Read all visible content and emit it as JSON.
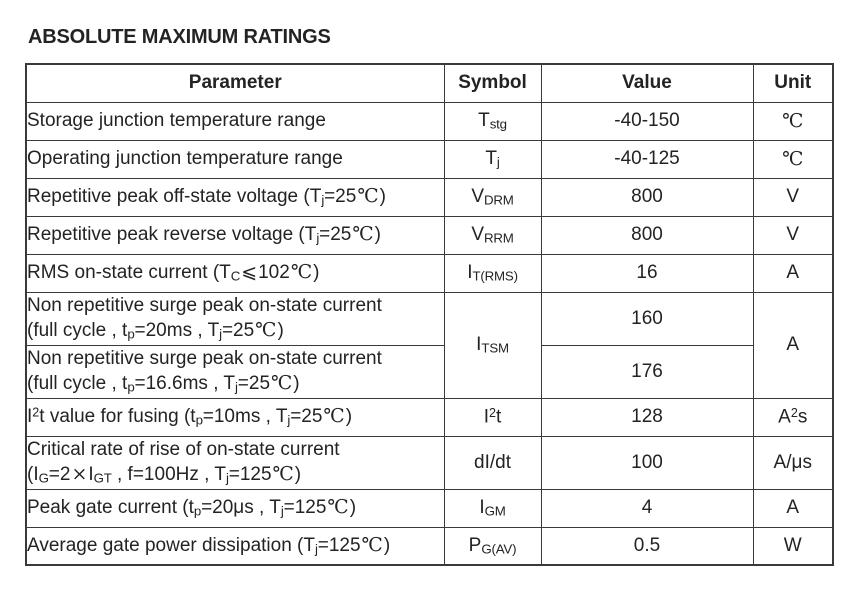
{
  "title": "ABSOLUTE MAXIMUM RATINGS",
  "colors": {
    "text": "#232323",
    "border": "#3a3a3a",
    "background": "#ffffff"
  },
  "table": {
    "headers": {
      "parameter": "Parameter",
      "symbol": "Symbol",
      "value": "Value",
      "unit": "Unit"
    },
    "rows": [
      {
        "param": [
          {
            "t": "Storage junction temperature range"
          }
        ],
        "symbol": [
          {
            "t": "T"
          },
          {
            "sub": "stg"
          }
        ],
        "value": "-40-150",
        "unit": [
          {
            "c": "℃"
          }
        ]
      },
      {
        "param": [
          {
            "t": "Operating junction temperature range"
          }
        ],
        "symbol": [
          {
            "t": "T"
          },
          {
            "sub": "j"
          }
        ],
        "value": "-40-125",
        "unit": [
          {
            "c": "℃"
          }
        ]
      },
      {
        "param": [
          {
            "t": "Repetitive peak off-state voltage (T"
          },
          {
            "sub": "j"
          },
          {
            "t": "=25"
          },
          {
            "c": "℃"
          },
          {
            "t": ")"
          }
        ],
        "symbol": [
          {
            "t": "V"
          },
          {
            "sub": "DRM"
          }
        ],
        "value": "800",
        "unit": [
          {
            "t": "V"
          }
        ]
      },
      {
        "param": [
          {
            "t": "Repetitive peak reverse voltage (T"
          },
          {
            "sub": "j"
          },
          {
            "t": "=25"
          },
          {
            "c": "℃"
          },
          {
            "t": ")"
          }
        ],
        "symbol": [
          {
            "t": "V"
          },
          {
            "sub": "RRM"
          }
        ],
        "value": "800",
        "unit": [
          {
            "t": "V"
          }
        ]
      },
      {
        "param": [
          {
            "t": "RMS on-state current (T"
          },
          {
            "sub": "C"
          },
          {
            "c": "⩽"
          },
          {
            "t": "102"
          },
          {
            "c": "℃"
          },
          {
            "t": ")"
          }
        ],
        "symbol": [
          {
            "t": "I"
          },
          {
            "sub": "T(RMS)"
          }
        ],
        "value": "16",
        "unit": [
          {
            "t": "A"
          }
        ]
      },
      {
        "param": [
          {
            "t": "Non repetitive surge peak on-state current"
          },
          {
            "br": true
          },
          {
            "t": "(full cycle , t"
          },
          {
            "sub": "p"
          },
          {
            "t": "=20ms , T"
          },
          {
            "sub": "j"
          },
          {
            "t": "=25"
          },
          {
            "c": "℃"
          },
          {
            "t": ")"
          }
        ],
        "symbol": [
          {
            "t": "I"
          },
          {
            "sub": "TSM"
          }
        ],
        "value": "160",
        "unit": [
          {
            "t": "A"
          }
        ]
      },
      {
        "param": [
          {
            "t": "Non repetitive surge peak on-state current"
          },
          {
            "br": true
          },
          {
            "t": "(full cycle , t"
          },
          {
            "sub": "p"
          },
          {
            "t": "=16.6ms , T"
          },
          {
            "sub": "j"
          },
          {
            "t": "=25"
          },
          {
            "c": "℃"
          },
          {
            "t": ")"
          }
        ],
        "value": "176"
      },
      {
        "param": [
          {
            "t": "I"
          },
          {
            "sup": "2"
          },
          {
            "t": "t value for fusing (t"
          },
          {
            "sub": "p"
          },
          {
            "t": "=10ms , T"
          },
          {
            "sub": "j"
          },
          {
            "t": "=25"
          },
          {
            "c": "℃"
          },
          {
            "t": ")"
          }
        ],
        "symbol": [
          {
            "t": "I"
          },
          {
            "sup": "2"
          },
          {
            "t": "t"
          }
        ],
        "value": "128",
        "unit": [
          {
            "t": "A"
          },
          {
            "sup": "2"
          },
          {
            "t": "s"
          }
        ]
      },
      {
        "param": [
          {
            "t": "Critical rate of rise of on-state current"
          },
          {
            "br": true
          },
          {
            "t": "(I"
          },
          {
            "sub": "G"
          },
          {
            "t": "=2"
          },
          {
            "c": "×"
          },
          {
            "t": "I"
          },
          {
            "sub": "GT"
          },
          {
            "t": " , f=100Hz , T"
          },
          {
            "sub": "j"
          },
          {
            "t": "=125"
          },
          {
            "c": "℃"
          },
          {
            "t": ")"
          }
        ],
        "symbol": [
          {
            "t": "dI/dt"
          }
        ],
        "value": "100",
        "unit": [
          {
            "t": "A/μs"
          }
        ]
      },
      {
        "param": [
          {
            "t": "Peak gate current (t"
          },
          {
            "sub": "p"
          },
          {
            "t": "=20μs , T"
          },
          {
            "sub": "j"
          },
          {
            "t": "=125"
          },
          {
            "c": "℃"
          },
          {
            "t": ")"
          }
        ],
        "symbol": [
          {
            "t": "I"
          },
          {
            "sub": "GM"
          }
        ],
        "value": "4",
        "unit": [
          {
            "t": "A"
          }
        ]
      },
      {
        "param": [
          {
            "t": "Average gate power dissipation (T"
          },
          {
            "sub": "j"
          },
          {
            "t": "=125"
          },
          {
            "c": "℃"
          },
          {
            "t": ")"
          }
        ],
        "symbol": [
          {
            "t": "P"
          },
          {
            "sub": "G(AV)"
          }
        ],
        "value": "0.5",
        "unit": [
          {
            "t": "W"
          }
        ]
      }
    ]
  }
}
